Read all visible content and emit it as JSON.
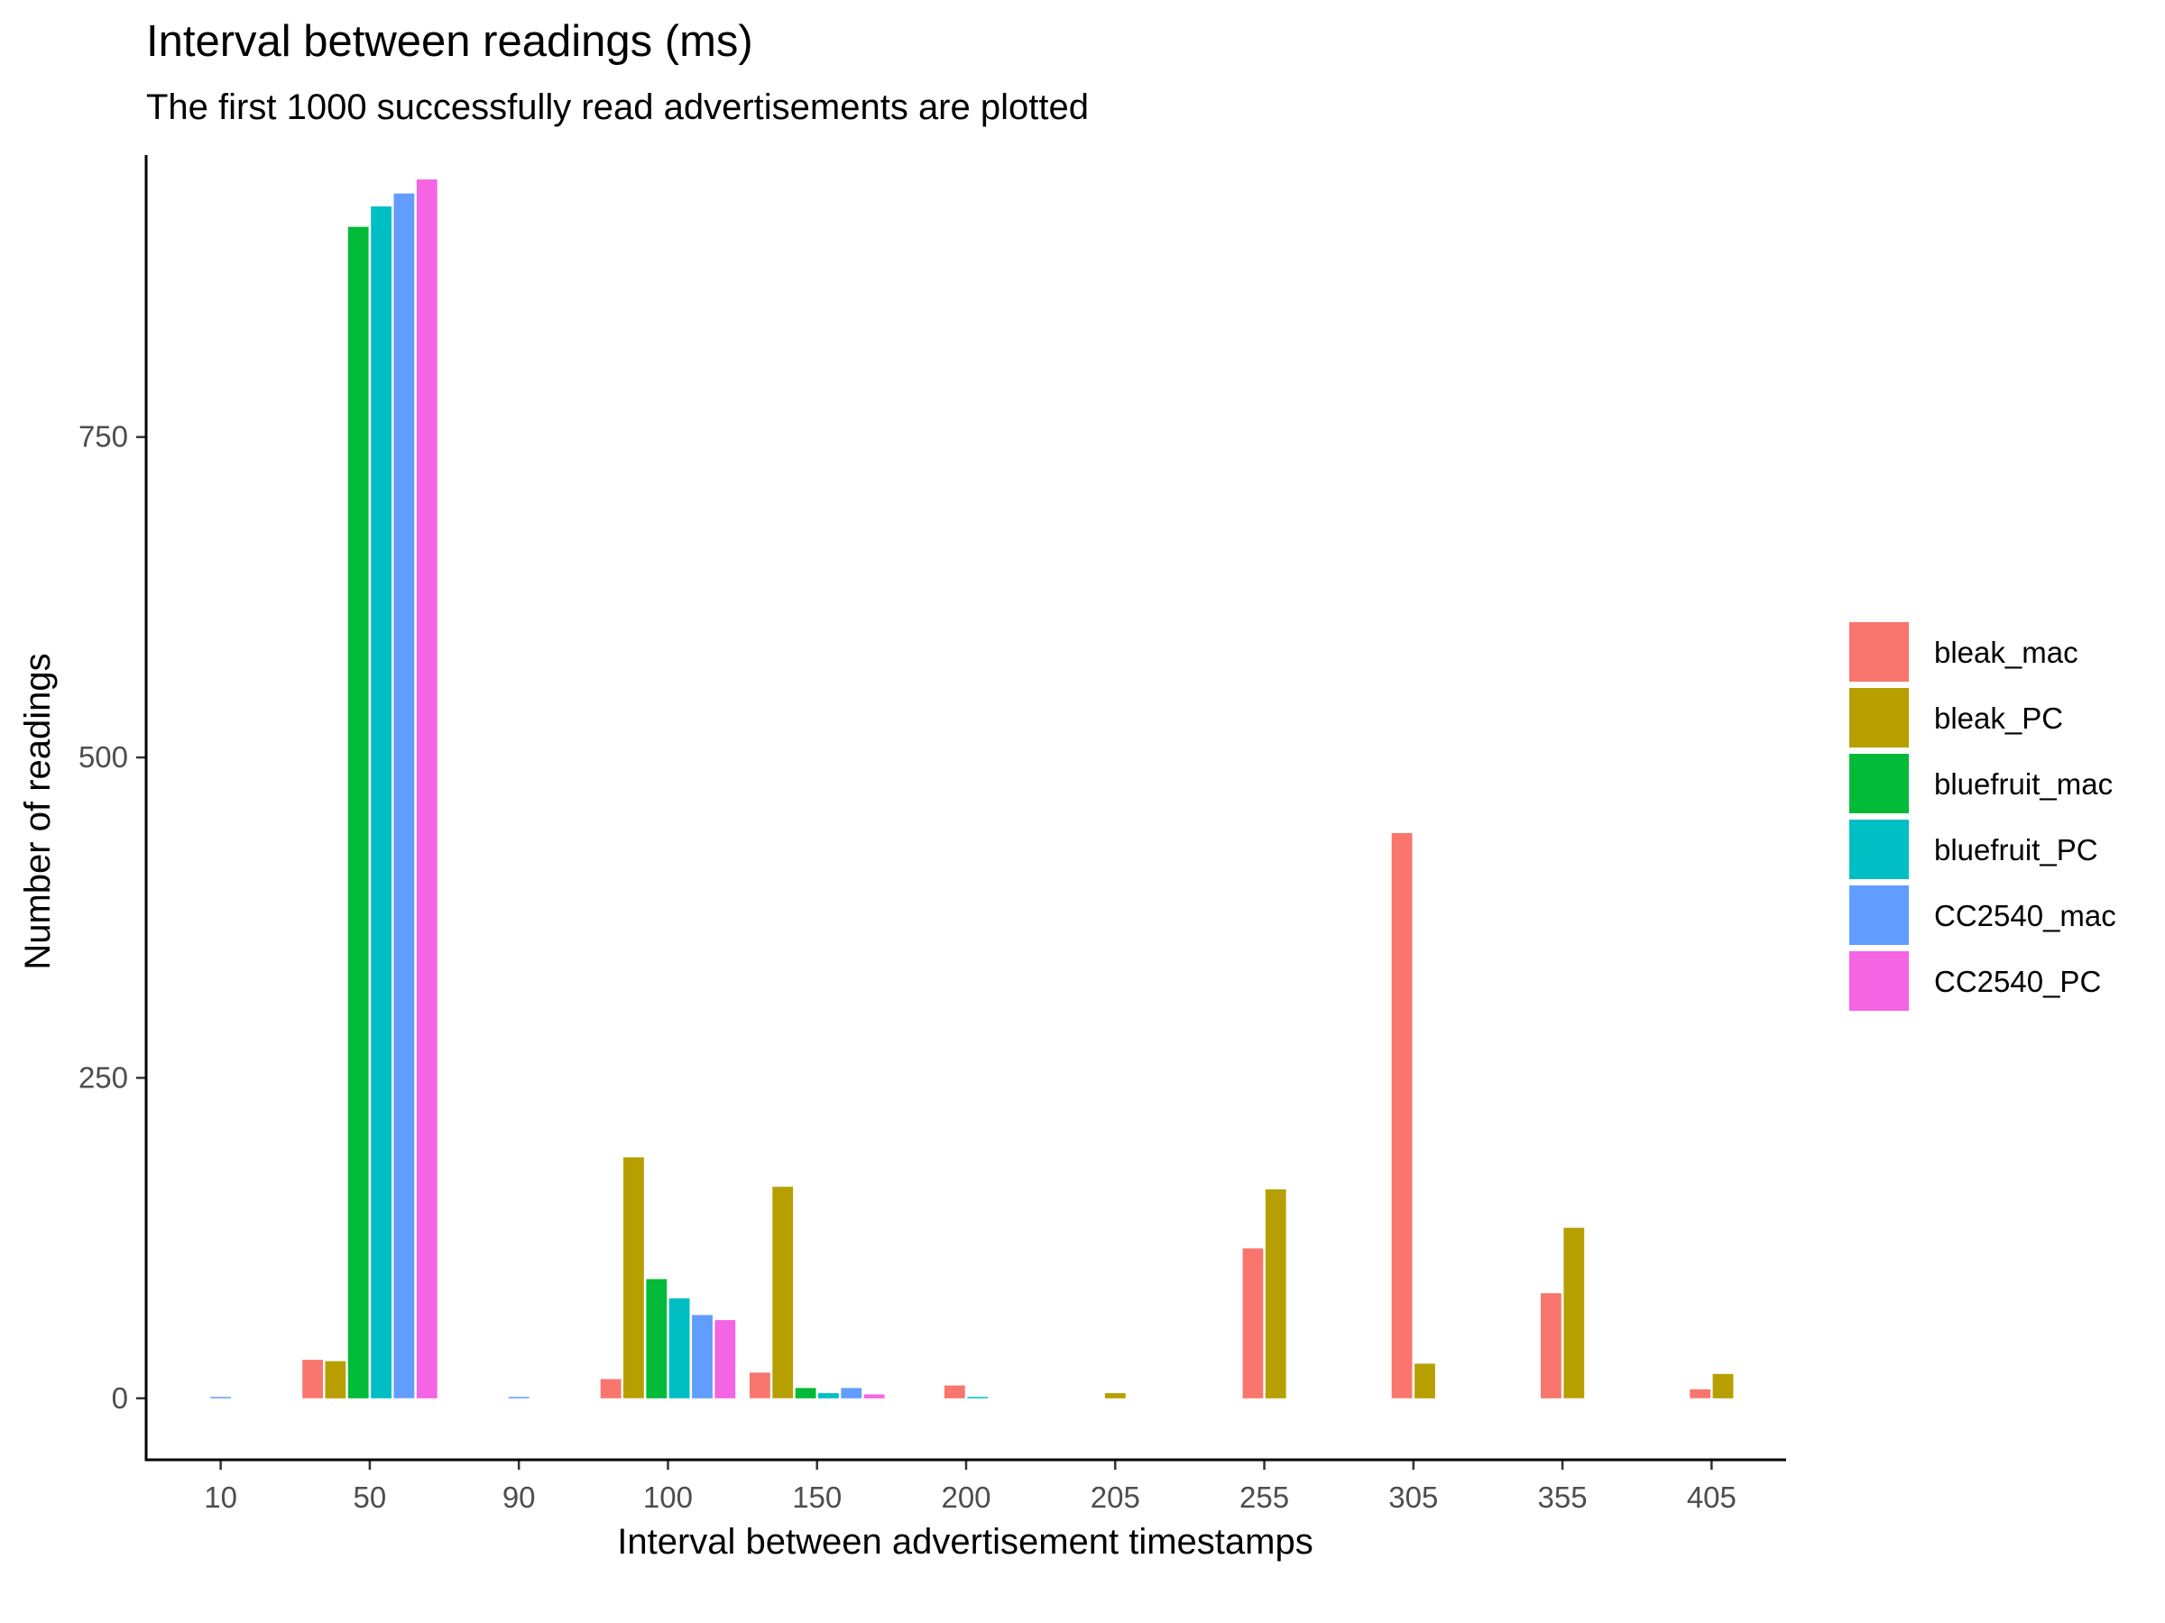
{
  "chart_data": {
    "type": "bar",
    "title": "Interval between readings (ms)",
    "subtitle": "The first 1000 successfully read advertisements are plotted",
    "xlabel": "Interval between advertisement timestamps",
    "ylabel": "Number of readings",
    "ylim": [
      -48,
      970
    ],
    "yticks": [
      0,
      250,
      500,
      750
    ],
    "grid": false,
    "legend_position": "right",
    "categories": [
      "10",
      "50",
      "90",
      "100",
      "150",
      "200",
      "205",
      "255",
      "305",
      "355",
      "405"
    ],
    "series": [
      {
        "name": "bleak_mac",
        "color": "#F8766D",
        "values": [
          null,
          30,
          null,
          15,
          20,
          10,
          null,
          117,
          441,
          82,
          7
        ]
      },
      {
        "name": "bleak_PC",
        "color": "#B79F00",
        "values": [
          null,
          29,
          null,
          188,
          165,
          null,
          4,
          163,
          27,
          133,
          19
        ]
      },
      {
        "name": "bluefruit_mac",
        "color": "#00BA38",
        "values": [
          null,
          914,
          null,
          93,
          8,
          null,
          null,
          null,
          null,
          null,
          null
        ]
      },
      {
        "name": "bluefruit_PC",
        "color": "#00BFC4",
        "values": [
          null,
          930,
          null,
          78,
          4,
          1,
          null,
          null,
          null,
          null,
          null
        ]
      },
      {
        "name": "CC2540_mac",
        "color": "#619CFF",
        "values": [
          1,
          940,
          1,
          65,
          8,
          null,
          null,
          null,
          null,
          null,
          null
        ]
      },
      {
        "name": "CC2540_PC",
        "color": "#F564E3",
        "values": [
          null,
          951,
          null,
          61,
          3,
          null,
          null,
          null,
          null,
          null,
          null
        ]
      }
    ]
  }
}
